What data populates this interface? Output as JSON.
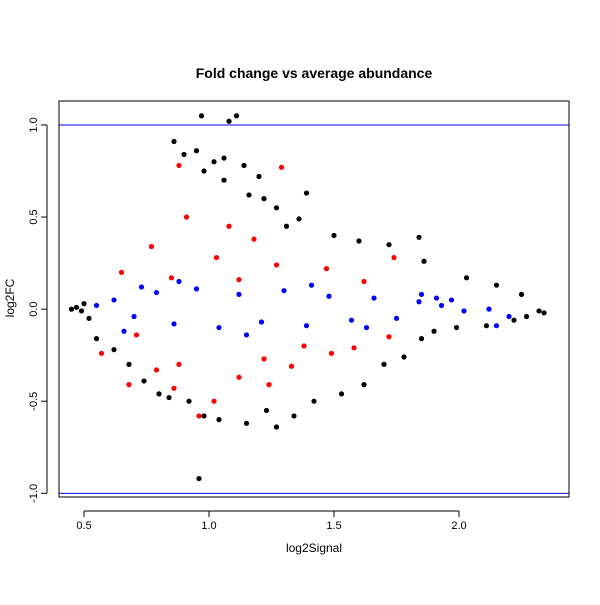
{
  "chart_data": {
    "type": "scatter",
    "title": "Fold change vs average abundance",
    "xlabel": "log2Signal",
    "ylabel": "log2FC",
    "xlim": [
      0.4,
      2.44
    ],
    "ylim": [
      -1.02,
      1.13
    ],
    "x_ticks": [
      0.5,
      1.0,
      1.5,
      2.0
    ],
    "x_tick_labels": [
      "0.5",
      "1.0",
      "1.5",
      "2.0"
    ],
    "y_ticks": [
      -1.0,
      -0.5,
      0.0,
      0.5,
      1.0
    ],
    "y_tick_labels": [
      "-1.0",
      "-0.5",
      "0.0",
      "0.5",
      "1.0"
    ],
    "grid": false,
    "reference_lines": [
      {
        "axis": "y",
        "value": 1.0,
        "color": "#0000ff"
      },
      {
        "axis": "y",
        "value": -1.0,
        "color": "#0000ff"
      }
    ],
    "series": [
      {
        "color": "#000000",
        "points": [
          [
            0.96,
            -0.92
          ],
          [
            0.97,
            1.05
          ],
          [
            1.08,
            1.02
          ],
          [
            1.11,
            1.05
          ],
          [
            0.86,
            0.91
          ],
          [
            0.95,
            0.86
          ],
          [
            0.9,
            0.84
          ],
          [
            1.06,
            0.82
          ],
          [
            1.02,
            0.8
          ],
          [
            1.14,
            0.78
          ],
          [
            0.98,
            0.75
          ],
          [
            1.2,
            0.72
          ],
          [
            1.06,
            0.7
          ],
          [
            1.16,
            0.62
          ],
          [
            1.22,
            0.6
          ],
          [
            1.39,
            0.63
          ],
          [
            1.27,
            0.55
          ],
          [
            1.36,
            0.49
          ],
          [
            1.31,
            0.45
          ],
          [
            1.5,
            0.4
          ],
          [
            1.6,
            0.37
          ],
          [
            1.72,
            0.35
          ],
          [
            1.84,
            0.39
          ],
          [
            1.86,
            0.26
          ],
          [
            2.03,
            0.17
          ],
          [
            2.15,
            0.13
          ],
          [
            2.25,
            0.08
          ],
          [
            2.32,
            -0.01
          ],
          [
            2.34,
            -0.02
          ],
          [
            2.27,
            -0.04
          ],
          [
            2.22,
            -0.06
          ],
          [
            2.11,
            -0.09
          ],
          [
            0.45,
            0.0
          ],
          [
            0.47,
            0.01
          ],
          [
            0.49,
            -0.01
          ],
          [
            0.5,
            0.03
          ],
          [
            0.52,
            -0.05
          ],
          [
            0.55,
            -0.16
          ],
          [
            0.62,
            -0.22
          ],
          [
            0.68,
            -0.3
          ],
          [
            0.74,
            -0.39
          ],
          [
            0.8,
            -0.46
          ],
          [
            0.84,
            -0.48
          ],
          [
            0.92,
            -0.5
          ],
          [
            0.98,
            -0.58
          ],
          [
            1.04,
            -0.6
          ],
          [
            1.15,
            -0.62
          ],
          [
            1.23,
            -0.55
          ],
          [
            1.27,
            -0.64
          ],
          [
            1.34,
            -0.58
          ],
          [
            1.42,
            -0.5
          ],
          [
            1.53,
            -0.46
          ],
          [
            1.62,
            -0.41
          ],
          [
            1.7,
            -0.3
          ],
          [
            1.78,
            -0.26
          ],
          [
            1.85,
            -0.16
          ],
          [
            1.9,
            -0.12
          ],
          [
            1.99,
            -0.1
          ]
        ]
      },
      {
        "color": "#ff0000",
        "points": [
          [
            0.88,
            0.78
          ],
          [
            1.29,
            0.77
          ],
          [
            0.91,
            0.5
          ],
          [
            1.08,
            0.45
          ],
          [
            1.18,
            0.38
          ],
          [
            0.77,
            0.34
          ],
          [
            1.03,
            0.28
          ],
          [
            1.27,
            0.24
          ],
          [
            1.47,
            0.22
          ],
          [
            0.65,
            0.2
          ],
          [
            0.85,
            0.17
          ],
          [
            1.12,
            0.16
          ],
          [
            1.62,
            0.15
          ],
          [
            1.74,
            0.28
          ],
          [
            0.57,
            -0.24
          ],
          [
            0.68,
            -0.41
          ],
          [
            0.79,
            -0.33
          ],
          [
            0.88,
            -0.3
          ],
          [
            0.96,
            -0.58
          ],
          [
            1.02,
            -0.5
          ],
          [
            1.12,
            -0.37
          ],
          [
            1.22,
            -0.27
          ],
          [
            1.33,
            -0.31
          ],
          [
            1.49,
            -0.24
          ],
          [
            1.58,
            -0.21
          ],
          [
            1.72,
            -0.15
          ],
          [
            0.71,
            -0.14
          ],
          [
            1.38,
            -0.2
          ],
          [
            0.86,
            -0.43
          ],
          [
            1.24,
            -0.41
          ]
        ]
      },
      {
        "color": "#0000ff",
        "points": [
          [
            0.55,
            0.02
          ],
          [
            0.62,
            0.05
          ],
          [
            0.7,
            -0.04
          ],
          [
            0.79,
            0.09
          ],
          [
            0.86,
            -0.08
          ],
          [
            0.95,
            0.11
          ],
          [
            1.04,
            -0.1
          ],
          [
            1.12,
            0.08
          ],
          [
            1.21,
            -0.07
          ],
          [
            1.3,
            0.1
          ],
          [
            1.39,
            -0.09
          ],
          [
            1.48,
            0.07
          ],
          [
            1.57,
            -0.06
          ],
          [
            1.66,
            0.06
          ],
          [
            1.75,
            -0.05
          ],
          [
            1.84,
            0.04
          ],
          [
            1.93,
            0.02
          ],
          [
            2.02,
            -0.01
          ],
          [
            2.12,
            0.0
          ],
          [
            2.2,
            -0.04
          ],
          [
            0.66,
            -0.12
          ],
          [
            0.88,
            0.15
          ],
          [
            1.15,
            -0.14
          ],
          [
            1.41,
            0.13
          ],
          [
            1.63,
            -0.1
          ],
          [
            1.85,
            0.08
          ],
          [
            1.97,
            0.05
          ],
          [
            2.15,
            -0.09
          ],
          [
            1.91,
            0.06
          ],
          [
            0.73,
            0.12
          ]
        ]
      }
    ]
  }
}
